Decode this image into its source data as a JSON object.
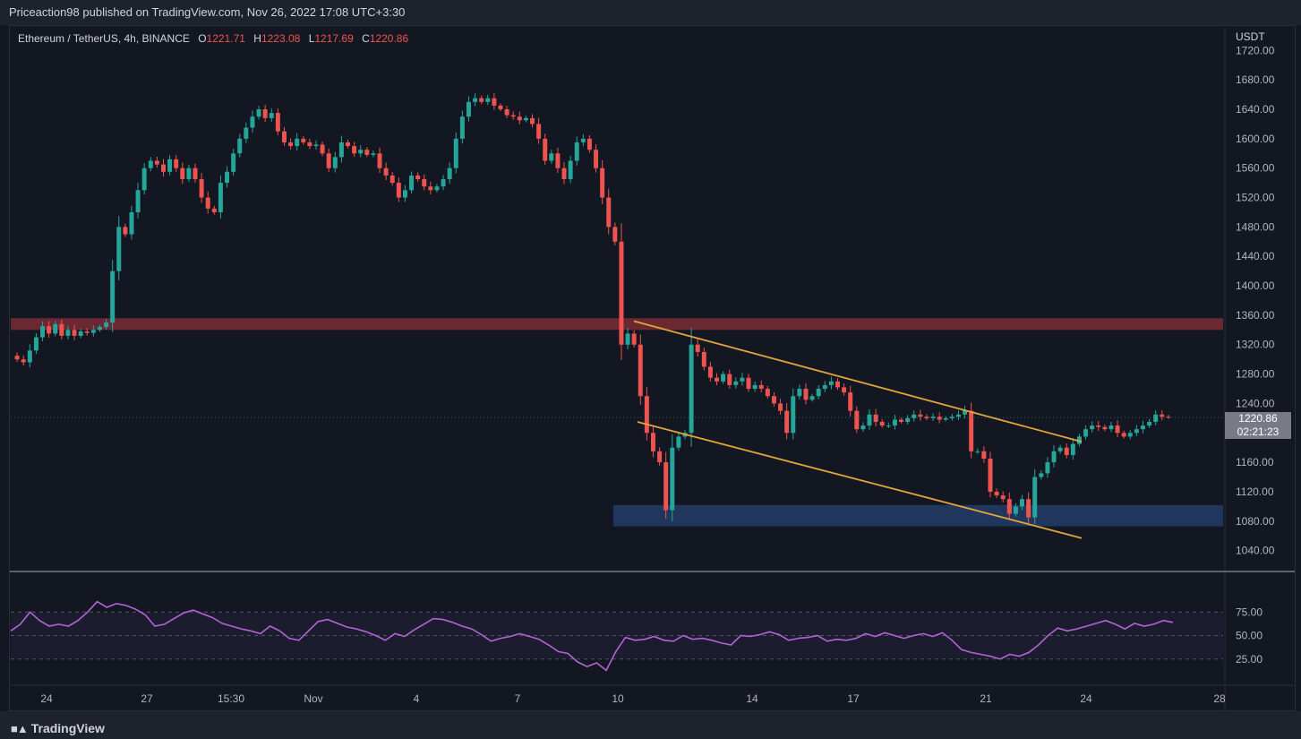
{
  "header": {
    "publisher": "Priceaction98 published on TradingView.com, Nov 26, 2022 17:08 UTC+3:30"
  },
  "legend": {
    "symbol": "Ethereum / TetherUS, 4h, BINANCE",
    "open_label": "O",
    "open": "1221.71",
    "high_label": "H",
    "high": "1223.08",
    "low_label": "L",
    "low": "1217.69",
    "close_label": "C",
    "close": "1220.86"
  },
  "price_axis": {
    "currency": "USDT",
    "ticks": [
      "1720.00",
      "1680.00",
      "1640.00",
      "1600.00",
      "1560.00",
      "1520.00",
      "1480.00",
      "1440.00",
      "1400.00",
      "1360.00",
      "1320.00",
      "1280.00",
      "1240.00",
      "1160.00",
      "1120.00",
      "1080.00",
      "1040.00"
    ],
    "last_price": "1220.86",
    "countdown": "02:21:23"
  },
  "rsi_axis": {
    "ticks": [
      "75.00",
      "50.00",
      "25.00"
    ]
  },
  "time_axis": {
    "ticks": [
      "24",
      "27",
      "15:30",
      "Nov",
      "4",
      "7",
      "10",
      "14",
      "17",
      "21",
      "24",
      "28"
    ]
  },
  "footer": {
    "logo_text": "TradingView"
  },
  "colors": {
    "up": "#26a69a",
    "down": "#ef5350",
    "channel": "#e3a53b",
    "resistance_zone": "#7a2b35",
    "support_zone": "#233a63",
    "rsi": "#b463d6"
  },
  "chart_data": [
    {
      "type": "candlestick",
      "title": "Ethereum / TetherUS, 4h, BINANCE",
      "ylabel": "USDT",
      "ylim": [
        1025,
        1730
      ],
      "resistance_zone": [
        1340,
        1356
      ],
      "support_zone": [
        1073,
        1102
      ],
      "channel_upper": [
        [
          0,
          1352
        ],
        [
          1,
          1188
        ]
      ],
      "channel_lower": [
        [
          0,
          1215
        ],
        [
          1,
          1057
        ]
      ],
      "path": [
        [
          0,
          1305
        ],
        [
          1,
          1300
        ],
        [
          2,
          1296
        ],
        [
          3,
          1312
        ],
        [
          4,
          1330
        ],
        [
          5,
          1345
        ],
        [
          6,
          1335
        ],
        [
          7,
          1348
        ],
        [
          8,
          1332
        ],
        [
          9,
          1340
        ],
        [
          10,
          1332
        ],
        [
          11,
          1338
        ],
        [
          12,
          1336
        ],
        [
          13,
          1340
        ],
        [
          14,
          1344
        ],
        [
          15,
          1350
        ],
        [
          16,
          1420
        ],
        [
          17,
          1480
        ],
        [
          18,
          1470
        ],
        [
          19,
          1500
        ],
        [
          20,
          1530
        ],
        [
          21,
          1560
        ],
        [
          22,
          1570
        ],
        [
          23,
          1565
        ],
        [
          24,
          1555
        ],
        [
          25,
          1572
        ],
        [
          26,
          1560
        ],
        [
          27,
          1545
        ],
        [
          28,
          1560
        ],
        [
          29,
          1545
        ],
        [
          30,
          1520
        ],
        [
          31,
          1505
        ],
        [
          32,
          1500
        ],
        [
          33,
          1540
        ],
        [
          34,
          1555
        ],
        [
          35,
          1580
        ],
        [
          36,
          1600
        ],
        [
          37,
          1615
        ],
        [
          38,
          1630
        ],
        [
          39,
          1640
        ],
        [
          40,
          1628
        ],
        [
          41,
          1635
        ],
        [
          42,
          1610
        ],
        [
          43,
          1595
        ],
        [
          44,
          1590
        ],
        [
          45,
          1600
        ],
        [
          46,
          1595
        ],
        [
          47,
          1590
        ],
        [
          48,
          1592
        ],
        [
          49,
          1580
        ],
        [
          50,
          1560
        ],
        [
          51,
          1575
        ],
        [
          52,
          1595
        ],
        [
          53,
          1590
        ],
        [
          54,
          1580
        ],
        [
          55,
          1585
        ],
        [
          56,
          1578
        ],
        [
          57,
          1580
        ],
        [
          58,
          1560
        ],
        [
          59,
          1550
        ],
        [
          60,
          1540
        ],
        [
          61,
          1520
        ],
        [
          62,
          1530
        ],
        [
          63,
          1550
        ],
        [
          64,
          1545
        ],
        [
          65,
          1535
        ],
        [
          66,
          1530
        ],
        [
          67,
          1535
        ],
        [
          68,
          1545
        ],
        [
          69,
          1560
        ],
        [
          70,
          1600
        ],
        [
          71,
          1630
        ],
        [
          72,
          1650
        ],
        [
          73,
          1655
        ],
        [
          74,
          1650
        ],
        [
          75,
          1655
        ],
        [
          76,
          1645
        ],
        [
          77,
          1640
        ],
        [
          78,
          1632
        ],
        [
          79,
          1630
        ],
        [
          80,
          1625
        ],
        [
          81,
          1628
        ],
        [
          82,
          1620
        ],
        [
          83,
          1600
        ],
        [
          84,
          1570
        ],
        [
          85,
          1580
        ],
        [
          86,
          1560
        ],
        [
          87,
          1545
        ],
        [
          88,
          1570
        ],
        [
          89,
          1595
        ],
        [
          90,
          1600
        ],
        [
          91,
          1585
        ],
        [
          92,
          1560
        ],
        [
          93,
          1520
        ],
        [
          94,
          1480
        ],
        [
          95,
          1460
        ],
        [
          96,
          1320
        ],
        [
          97,
          1335
        ],
        [
          98,
          1320
        ],
        [
          99,
          1250
        ],
        [
          100,
          1200
        ],
        [
          101,
          1175
        ],
        [
          102,
          1160
        ],
        [
          103,
          1095
        ],
        [
          104,
          1180
        ],
        [
          105,
          1195
        ],
        [
          106,
          1200
        ],
        [
          107,
          1320
        ],
        [
          108,
          1310
        ],
        [
          109,
          1290
        ],
        [
          110,
          1275
        ],
        [
          111,
          1270
        ],
        [
          112,
          1280
        ],
        [
          113,
          1265
        ],
        [
          114,
          1270
        ],
        [
          115,
          1275
        ],
        [
          116,
          1260
        ],
        [
          117,
          1265
        ],
        [
          118,
          1260
        ],
        [
          119,
          1250
        ],
        [
          120,
          1240
        ],
        [
          121,
          1230
        ],
        [
          122,
          1200
        ],
        [
          123,
          1250
        ],
        [
          124,
          1260
        ],
        [
          125,
          1245
        ],
        [
          126,
          1250
        ],
        [
          127,
          1260
        ],
        [
          128,
          1265
        ],
        [
          129,
          1270
        ],
        [
          130,
          1262
        ],
        [
          131,
          1255
        ],
        [
          132,
          1230
        ],
        [
          133,
          1205
        ],
        [
          134,
          1210
        ],
        [
          135,
          1225
        ],
        [
          136,
          1215
        ],
        [
          137,
          1210
        ],
        [
          138,
          1210
        ],
        [
          139,
          1218
        ],
        [
          140,
          1215
        ],
        [
          141,
          1220
        ],
        [
          142,
          1225
        ],
        [
          143,
          1222
        ],
        [
          144,
          1220
        ],
        [
          145,
          1222
        ],
        [
          146,
          1218
        ],
        [
          147,
          1220
        ],
        [
          148,
          1222
        ],
        [
          149,
          1225
        ],
        [
          150,
          1230
        ],
        [
          151,
          1175
        ],
        [
          152,
          1175
        ],
        [
          153,
          1165
        ],
        [
          154,
          1120
        ],
        [
          155,
          1115
        ],
        [
          156,
          1110
        ],
        [
          157,
          1090
        ],
        [
          158,
          1100
        ],
        [
          159,
          1110
        ],
        [
          160,
          1085
        ],
        [
          161,
          1140
        ],
        [
          162,
          1145
        ],
        [
          163,
          1160
        ],
        [
          164,
          1175
        ],
        [
          165,
          1180
        ],
        [
          166,
          1170
        ],
        [
          167,
          1185
        ],
        [
          168,
          1195
        ],
        [
          169,
          1205
        ],
        [
          170,
          1210
        ],
        [
          171,
          1208
        ],
        [
          172,
          1205
        ],
        [
          173,
          1210
        ],
        [
          174,
          1200
        ],
        [
          175,
          1195
        ],
        [
          176,
          1200
        ],
        [
          177,
          1205
        ],
        [
          178,
          1210
        ],
        [
          179,
          1215
        ],
        [
          180,
          1225
        ],
        [
          181,
          1222
        ],
        [
          182,
          1221
        ]
      ]
    },
    {
      "type": "line",
      "series": [
        {
          "name": "RSI",
          "values": [
            55,
            62,
            75,
            66,
            60,
            62,
            60,
            66,
            75,
            86,
            80,
            84,
            82,
            78,
            72,
            60,
            62,
            68,
            74,
            77,
            73,
            69,
            63,
            60,
            57,
            55,
            52,
            60,
            55,
            47,
            45,
            55,
            65,
            67,
            63,
            59,
            57,
            54,
            50,
            45,
            52,
            49,
            56,
            62,
            68,
            67,
            64,
            60,
            57,
            51,
            44,
            47,
            49,
            52,
            49,
            46,
            40,
            33,
            31,
            22,
            17,
            21,
            13,
            33,
            48,
            45,
            46,
            49,
            45,
            44,
            50,
            46,
            47,
            45,
            42,
            40,
            50,
            49,
            51,
            54,
            51,
            45,
            47,
            48,
            50,
            44,
            46,
            45,
            47,
            52,
            49,
            53,
            50,
            47,
            50,
            52,
            49,
            53,
            45,
            35,
            32,
            30,
            28,
            25,
            30,
            28,
            32,
            40,
            50,
            58,
            55,
            57,
            60,
            63,
            66,
            62,
            57,
            63,
            60,
            62,
            66,
            64
          ]
        }
      ],
      "ylim": [
        0,
        100
      ],
      "guides": [
        75,
        50,
        25
      ]
    }
  ]
}
